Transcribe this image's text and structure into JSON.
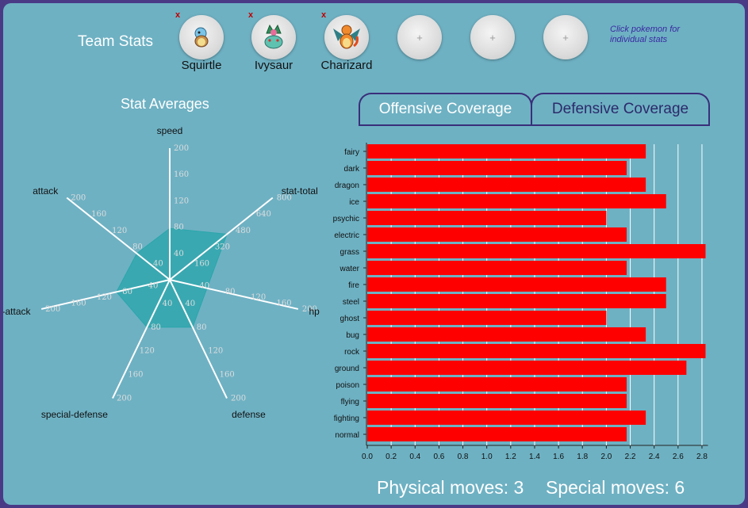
{
  "team": {
    "title": "Team Stats",
    "hint": "Click pokemon for individual stats",
    "remove_label": "x",
    "add_label": "+",
    "members": [
      {
        "name": "Squirtle",
        "icon": "squirtle-sprite-icon"
      },
      {
        "name": "Ivysaur",
        "icon": "ivysaur-sprite-icon"
      },
      {
        "name": "Charizard",
        "icon": "charizard-sprite-icon"
      }
    ],
    "empty_slots": 3
  },
  "stat_averages": {
    "title": "Stat Averages",
    "axes": [
      {
        "name": "speed",
        "ticks": [
          "40",
          "80",
          "120",
          "160",
          "200"
        ],
        "max": 200,
        "value": 78
      },
      {
        "name": "stat-total",
        "ticks": [
          "160",
          "320",
          "480",
          "640",
          "800"
        ],
        "max": 800,
        "value": 445
      },
      {
        "name": "hp",
        "ticks": [
          "40",
          "80",
          "120",
          "160",
          "200"
        ],
        "max": 200,
        "value": 58
      },
      {
        "name": "defense",
        "ticks": [
          "40",
          "80",
          "120",
          "160",
          "200"
        ],
        "max": 200,
        "value": 80
      },
      {
        "name": "special-defense",
        "ticks": [
          "40",
          "80",
          "120",
          "160",
          "200"
        ],
        "max": 200,
        "value": 80
      },
      {
        "name": "special-attack",
        "ticks": [
          "40",
          "80",
          "120",
          "160",
          "200"
        ],
        "max": 200,
        "value": 83
      },
      {
        "name": "attack",
        "ticks": [
          "40",
          "80",
          "120",
          "160",
          "200"
        ],
        "max": 200,
        "value": 64
      }
    ],
    "fill_color": "#2aa6ab"
  },
  "tabs": [
    {
      "label": "Offensive Coverage",
      "active": true
    },
    {
      "label": "Defensive Coverage",
      "active": false
    }
  ],
  "chart_data": {
    "type": "bar",
    "orientation": "horizontal",
    "categories": [
      "fairy",
      "dark",
      "dragon",
      "ice",
      "psychic",
      "electric",
      "grass",
      "water",
      "fire",
      "steel",
      "ghost",
      "bug",
      "rock",
      "ground",
      "poison",
      "flying",
      "fighting",
      "normal"
    ],
    "values": [
      2.33,
      2.17,
      2.33,
      2.5,
      2.0,
      2.17,
      2.83,
      2.17,
      2.5,
      2.5,
      2.0,
      2.33,
      2.83,
      2.67,
      2.17,
      2.17,
      2.33,
      2.17
    ],
    "xlim": [
      0,
      2.8
    ],
    "xticks": [
      "0.0",
      "0.2",
      "0.4",
      "0.6",
      "0.8",
      "1.0",
      "1.2",
      "1.4",
      "1.6",
      "1.8",
      "2.0",
      "2.2",
      "2.4",
      "2.6",
      "2.8"
    ],
    "bar_color": "#ff0000",
    "grid": true
  },
  "moves": {
    "physical": "Physical moves: 3",
    "special": "Special moves: 6"
  }
}
